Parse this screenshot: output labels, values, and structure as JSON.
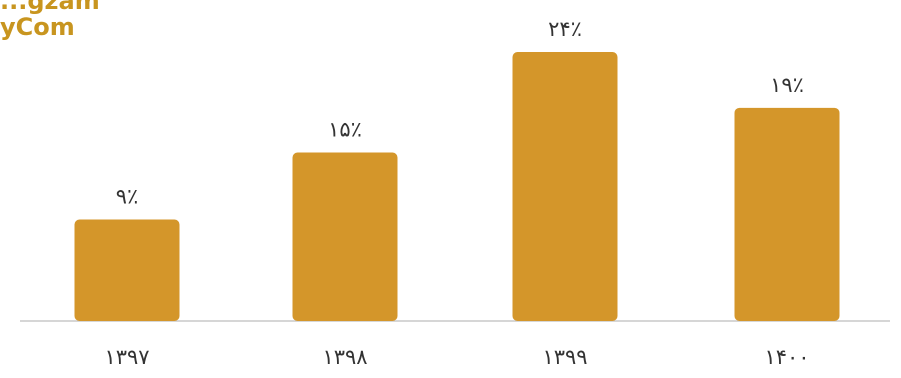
{
  "watermark": {
    "line1": "...gzam",
    "line2": "yCom"
  },
  "colors": {
    "bar": "#d4962a",
    "bar_highlight": "#de9f30",
    "axis": "#c9c9c9",
    "text": "#333333"
  },
  "chart_data": {
    "type": "bar",
    "categories": [
      "۱۳۹۷",
      "۱۳۹۸",
      "۱۳۹۹",
      "۱۴۰۰"
    ],
    "values": [
      9,
      15,
      24,
      19
    ],
    "data_labels": [
      "۹٪",
      "۱۵٪",
      "۲۴٪",
      "۱۹٪"
    ],
    "unit": "%",
    "title": "",
    "xlabel": "",
    "ylabel": "",
    "ylim": [
      0,
      24
    ],
    "grid": false,
    "legend": "none"
  }
}
